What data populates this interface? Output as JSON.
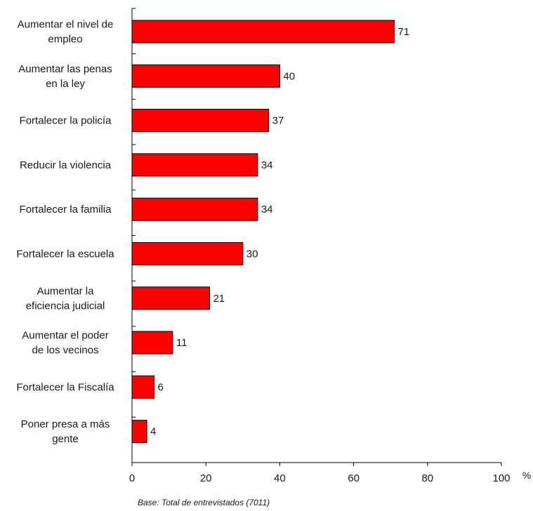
{
  "chart_data": {
    "type": "bar",
    "orientation": "horizontal",
    "categories": [
      [
        "Aumentar el nivel de",
        "empleo"
      ],
      [
        "Aumentar las penas",
        "en la ley"
      ],
      [
        "Fortalecer la policía"
      ],
      [
        "Reducir la violencia"
      ],
      [
        "Fortalecer la familia"
      ],
      [
        "Fortalecer la escuela"
      ],
      [
        "Aumentar la",
        "eficiencia judicial"
      ],
      [
        "Aumentar el poder",
        "de los vecinos"
      ],
      [
        "Fortalecer la Fiscalía"
      ],
      [
        "Poner presa a más",
        "gente"
      ]
    ],
    "values": [
      71,
      40,
      37,
      34,
      34,
      30,
      21,
      11,
      6,
      4
    ],
    "xlim": [
      0,
      100
    ],
    "xticks": [
      0,
      20,
      40,
      60,
      80,
      100
    ],
    "xunit": "%",
    "bar_color": "#ff0000",
    "bar_edge_color": "#000000",
    "grid": false,
    "footnote": "Base: Total de entrevistados (7011)"
  }
}
